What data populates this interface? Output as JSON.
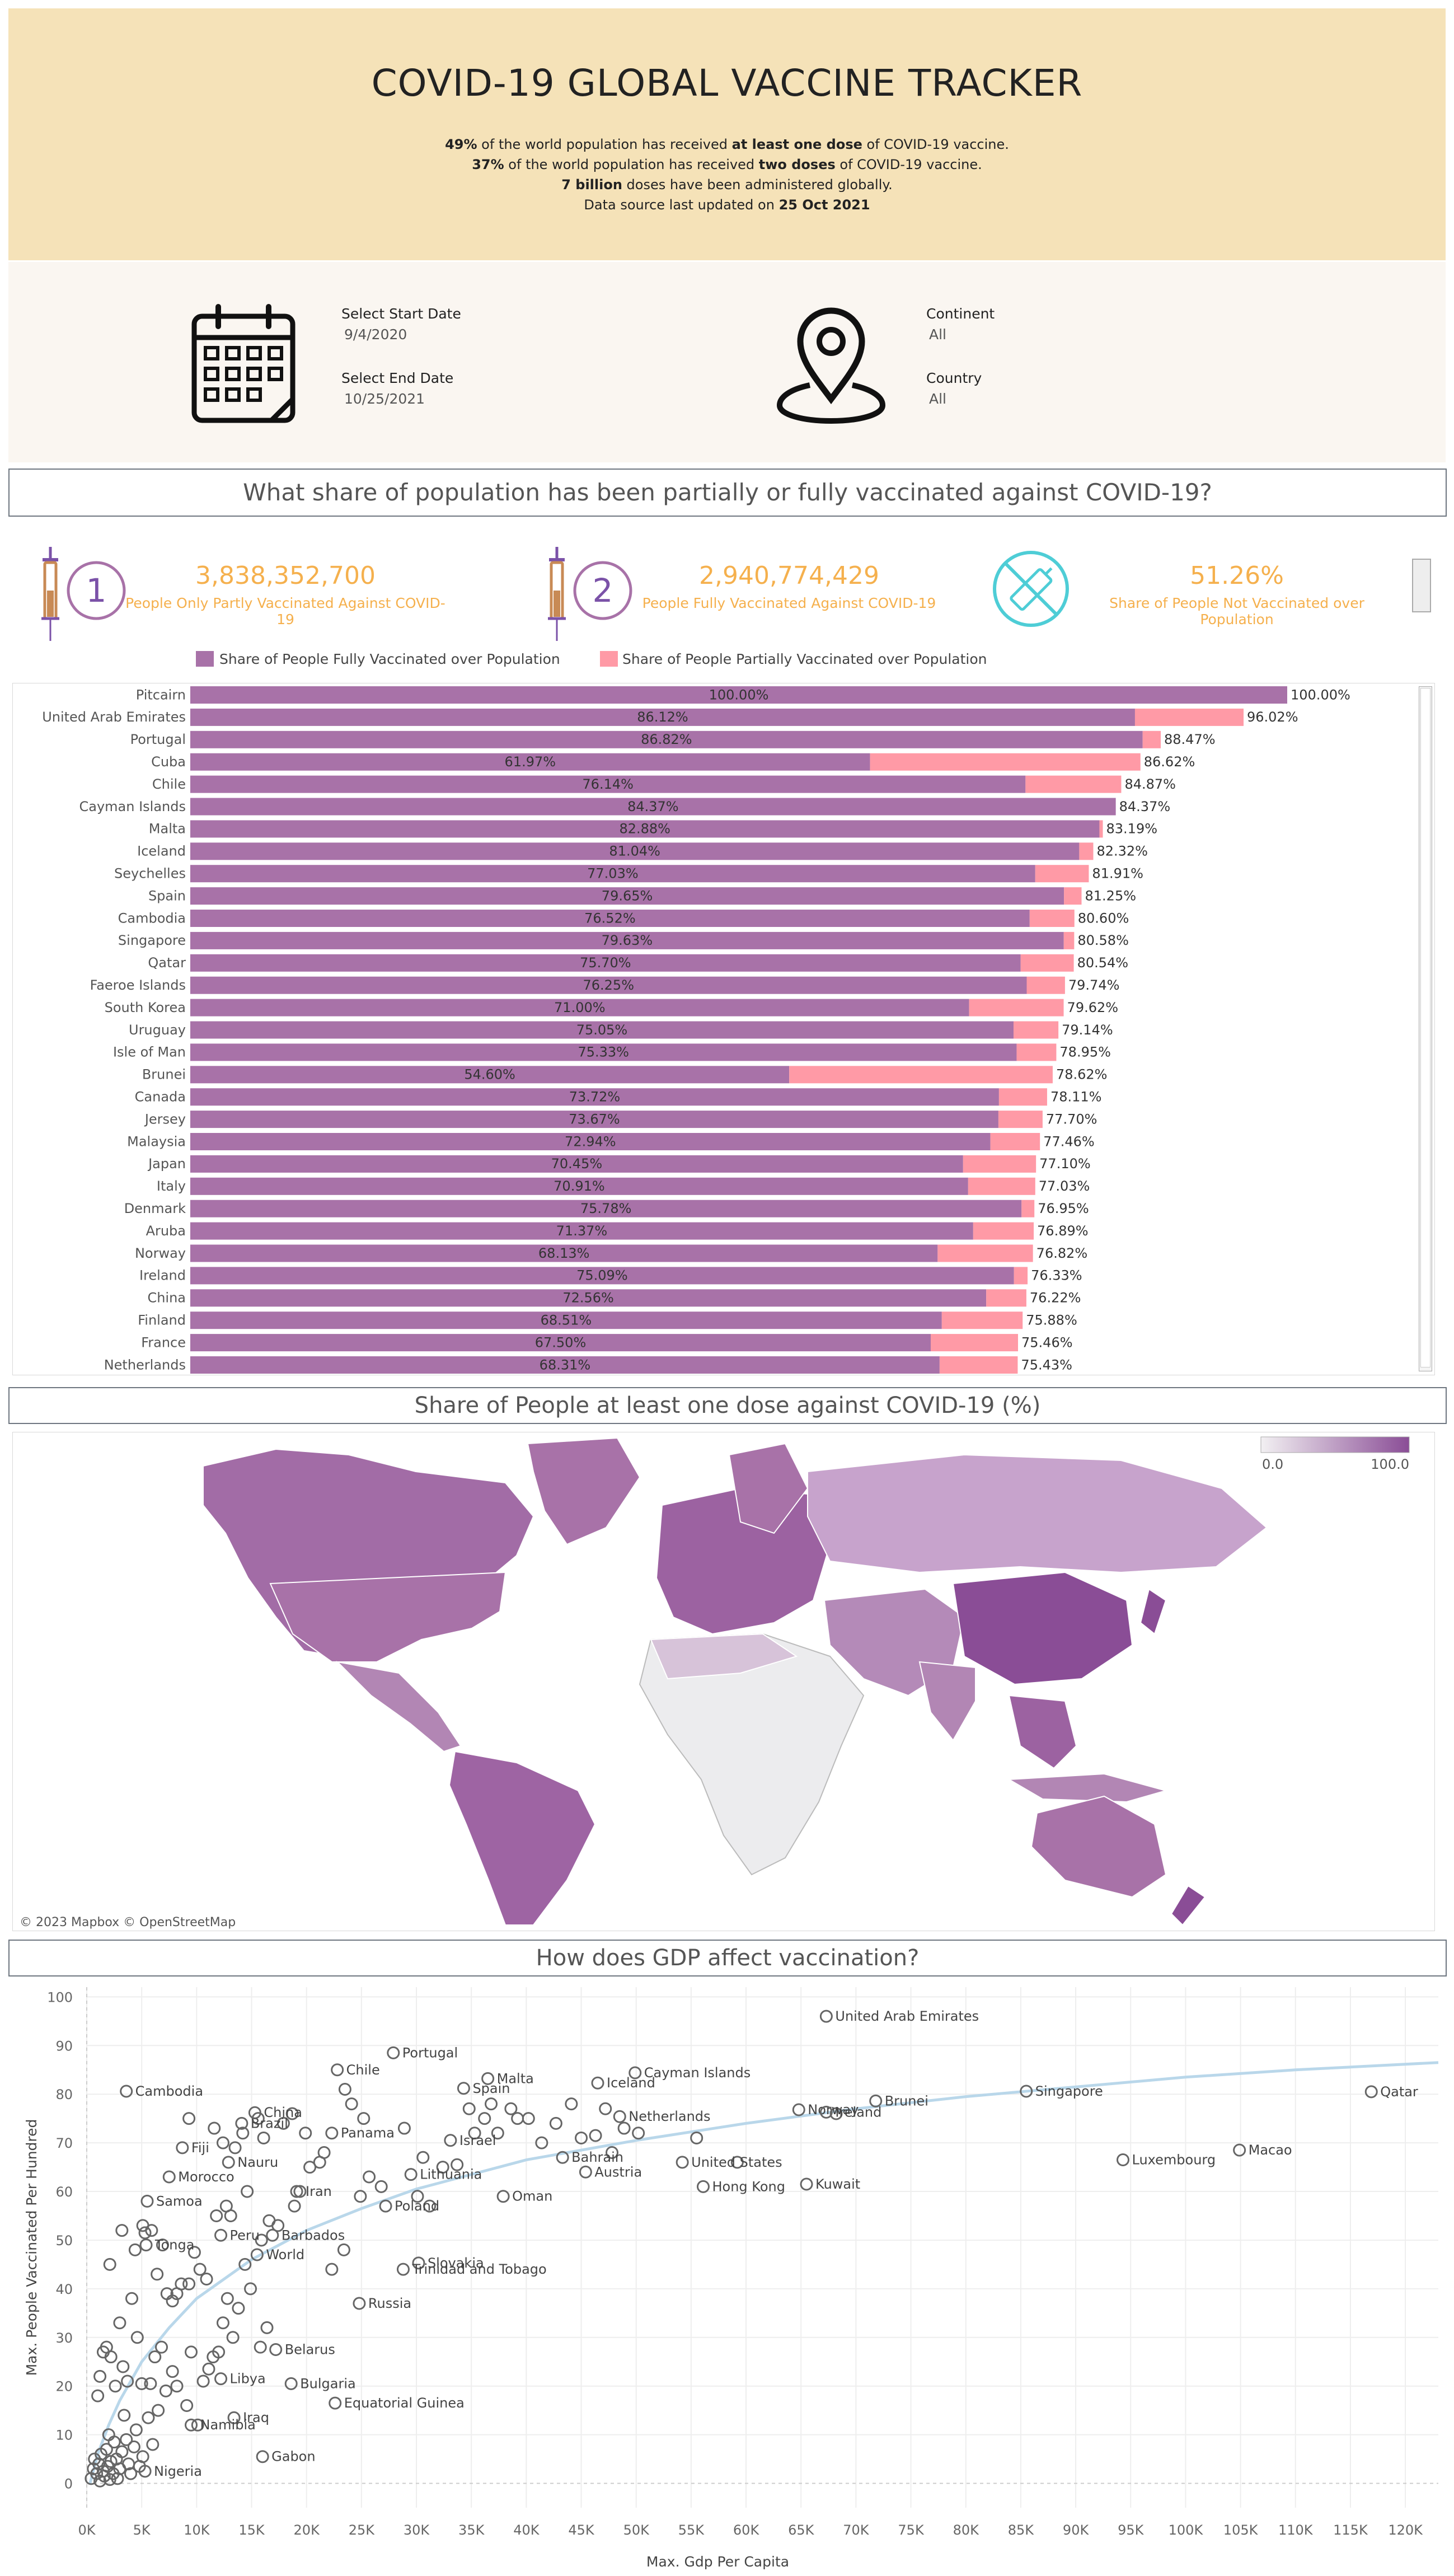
{
  "header": {
    "title": "COVID-19 GLOBAL VACCINE TRACKER",
    "line1": {
      "b1": "49%",
      "t1": " of the world population has received ",
      "b2": "at least one dose",
      "t2": " of COVID-19 vaccine."
    },
    "line2": {
      "b1": "37%",
      "t1": " of the world population has received ",
      "b2": "two doses",
      "t2": " of COVID-19 vaccine."
    },
    "line3": {
      "b1": "7 billion",
      "t1": " doses have been administered globally."
    },
    "line4": {
      "t1": "Data source last updated on ",
      "b1": "25 Oct 2021"
    }
  },
  "filters": {
    "start_label": "Select Start Date",
    "start_value": "9/4/2020",
    "end_label": "Select End Date",
    "end_value": "10/25/2021",
    "continent_label": "Continent",
    "continent_value": "All",
    "country_label": "Country",
    "country_value": "All",
    "calendar_icon": "calendar-icon",
    "location_icon": "location-pin-icon"
  },
  "section1": {
    "title": "What share of population has been partially or fully vaccinated against COVID-19?"
  },
  "kpis": [
    {
      "icon": "syringe-dose-1-icon",
      "number": "3,838,352,700",
      "label": "People Only Partly Vaccinated Against COVID-19"
    },
    {
      "icon": "syringe-dose-2-icon",
      "number": "2,940,774,429",
      "label": "People Fully Vaccinated Against COVID-19"
    },
    {
      "icon": "no-vaccine-icon",
      "number": "51.26%",
      "label": "Share of People Not Vaccinated over Population"
    }
  ],
  "section2": {
    "title": "Share of People at least one dose against COVID-19 (%)"
  },
  "section3": {
    "title": "How does GDP affect vaccination?"
  },
  "colors": {
    "fully": "#a872a8",
    "partial": "#ff9aa6",
    "kpi": "#f5b04d",
    "header": "#f5e2b8",
    "trend": "#b9d7ea"
  },
  "chart_data": [
    {
      "type": "bar",
      "orientation": "horizontal",
      "stacked": true,
      "legend": [
        "Share of People Fully Vaccinated over Population",
        "Share of People Partially Vaccinated over Population"
      ],
      "xlim": [
        0,
        100
      ],
      "categories": [
        "Pitcairn",
        "United Arab Emirates",
        "Portugal",
        "Cuba",
        "Chile",
        "Cayman Islands",
        "Malta",
        "Iceland",
        "Seychelles",
        "Spain",
        "Cambodia",
        "Singapore",
        "Qatar",
        "Faeroe Islands",
        "South Korea",
        "Uruguay",
        "Isle of Man",
        "Brunei",
        "Canada",
        "Jersey",
        "Malaysia",
        "Japan",
        "Italy",
        "Denmark",
        "Aruba",
        "Norway",
        "Ireland",
        "China",
        "Finland",
        "France",
        "Netherlands"
      ],
      "fully": [
        100.0,
        86.12,
        86.82,
        61.97,
        76.14,
        84.37,
        82.88,
        81.04,
        77.03,
        79.65,
        76.52,
        79.63,
        75.7,
        76.25,
        71.0,
        75.05,
        75.33,
        54.6,
        73.72,
        73.67,
        72.94,
        70.45,
        70.91,
        75.78,
        71.37,
        68.13,
        75.09,
        72.56,
        68.51,
        67.5,
        68.31
      ],
      "total": [
        100.0,
        96.02,
        88.47,
        86.62,
        84.87,
        84.37,
        83.19,
        82.32,
        81.91,
        81.25,
        80.6,
        80.58,
        80.54,
        79.74,
        79.62,
        79.14,
        78.95,
        78.62,
        78.11,
        77.7,
        77.46,
        77.1,
        77.03,
        76.95,
        76.89,
        76.82,
        76.33,
        76.22,
        75.88,
        75.46,
        75.43
      ],
      "fully_labels": [
        "100.00%",
        "86.12%",
        "86.82%",
        "61.97%",
        "76.14%",
        "84.37%",
        "82.88%",
        "81.04%",
        "77.03%",
        "79.65%",
        "76.52%",
        "79.63%",
        "75.70%",
        "76.25%",
        "71.00%",
        "75.05%",
        "75.33%",
        "54.60%",
        "73.72%",
        "73.67%",
        "72.94%",
        "70.45%",
        "70.91%",
        "75.78%",
        "71.37%",
        "68.13%",
        "75.09%",
        "72.56%",
        "68.51%",
        "67.50%",
        "68.31%"
      ],
      "total_labels": [
        "100.00%",
        "96.02%",
        "88.47%",
        "86.62%",
        "84.87%",
        "84.37%",
        "83.19%",
        "82.32%",
        "81.91%",
        "81.25%",
        "80.60%",
        "80.58%",
        "80.54%",
        "79.74%",
        "79.62%",
        "79.14%",
        "78.95%",
        "78.62%",
        "78.11%",
        "77.70%",
        "77.46%",
        "77.10%",
        "77.03%",
        "76.95%",
        "76.89%",
        "76.82%",
        "76.33%",
        "76.22%",
        "75.88%",
        "75.46%",
        "75.43%"
      ]
    },
    {
      "type": "choropleth",
      "color_range": [
        0.0,
        100.0
      ],
      "legend_min": "0.0",
      "legend_max": "100.0",
      "attribution": "© 2023 Mapbox © OpenStreetMap"
    },
    {
      "type": "scatter",
      "xlabel": "Max. Gdp Per Capita",
      "ylabel": "Max. People Vaccinated Per Hundred",
      "xlim": [
        0,
        123000
      ],
      "ylim": [
        -5,
        102
      ],
      "xticks": [
        0,
        5000,
        10000,
        15000,
        20000,
        25000,
        30000,
        35000,
        40000,
        45000,
        50000,
        55000,
        60000,
        65000,
        70000,
        75000,
        80000,
        85000,
        90000,
        95000,
        100000,
        105000,
        110000,
        115000,
        120000
      ],
      "xtick_labels": [
        "0K",
        "5K",
        "10K",
        "15K",
        "20K",
        "25K",
        "30K",
        "35K",
        "40K",
        "45K",
        "50K",
        "55K",
        "60K",
        "65K",
        "70K",
        "75K",
        "80K",
        "85K",
        "90K",
        "95K",
        "100K",
        "105K",
        "110K",
        "115K",
        "120K"
      ],
      "yticks": [
        0,
        10,
        20,
        30,
        40,
        50,
        60,
        70,
        80,
        90,
        100
      ],
      "ytick_labels": [
        "0",
        "10",
        "20",
        "30",
        "40",
        "50",
        "60",
        "70",
        "80",
        "90",
        "100"
      ],
      "labeled_points": [
        {
          "label": "United Arab Emirates",
          "x": 67300,
          "y": 96
        },
        {
          "label": "Portugal",
          "x": 27900,
          "y": 88.5
        },
        {
          "label": "Chile",
          "x": 22800,
          "y": 85
        },
        {
          "label": "Malta",
          "x": 36500,
          "y": 83.2
        },
        {
          "label": "Iceland",
          "x": 46500,
          "y": 82.3
        },
        {
          "label": "Cayman Islands",
          "x": 49900,
          "y": 84.4
        },
        {
          "label": "Cambodia",
          "x": 3600,
          "y": 80.6
        },
        {
          "label": "Spain",
          "x": 34300,
          "y": 81.2
        },
        {
          "label": "Netherlands",
          "x": 48500,
          "y": 75.4
        },
        {
          "label": "Singapore",
          "x": 85500,
          "y": 80.6
        },
        {
          "label": "Qatar",
          "x": 116900,
          "y": 80.5
        },
        {
          "label": "Brazil",
          "x": 14100,
          "y": 74
        },
        {
          "label": "China",
          "x": 15300,
          "y": 76.2
        },
        {
          "label": "Norway",
          "x": 64800,
          "y": 76.8
        },
        {
          "label": "Ireland",
          "x": 67300,
          "y": 76.3
        },
        {
          "label": "Brunei",
          "x": 71800,
          "y": 78.6
        },
        {
          "label": "Panama",
          "x": 22300,
          "y": 72
        },
        {
          "label": "Fiji",
          "x": 8700,
          "y": 69
        },
        {
          "label": "Israel",
          "x": 33100,
          "y": 70.5
        },
        {
          "label": "Nauru",
          "x": 12900,
          "y": 66
        },
        {
          "label": "United States",
          "x": 54200,
          "y": 66
        },
        {
          "label": "Bahrain",
          "x": 43300,
          "y": 67
        },
        {
          "label": "Luxembourg",
          "x": 94300,
          "y": 66.5
        },
        {
          "label": "Macao",
          "x": 104900,
          "y": 68.5
        },
        {
          "label": "Morocco",
          "x": 7500,
          "y": 63
        },
        {
          "label": "Lithuania",
          "x": 29500,
          "y": 63.5
        },
        {
          "label": "Austria",
          "x": 45400,
          "y": 64
        },
        {
          "label": "Iran",
          "x": 19100,
          "y": 60
        },
        {
          "label": "Hong Kong",
          "x": 56100,
          "y": 61
        },
        {
          "label": "Kuwait",
          "x": 65500,
          "y": 61.5
        },
        {
          "label": "Samoa",
          "x": 5500,
          "y": 58
        },
        {
          "label": "Oman",
          "x": 37900,
          "y": 59
        },
        {
          "label": "Poland",
          "x": 27200,
          "y": 57
        },
        {
          "label": "Peru",
          "x": 12200,
          "y": 51
        },
        {
          "label": "Barbados",
          "x": 16900,
          "y": 51
        },
        {
          "label": "Tonga",
          "x": 5400,
          "y": 49
        },
        {
          "label": "World",
          "x": 15500,
          "y": 47
        },
        {
          "label": "Slovakia",
          "x": 30200,
          "y": 45.3
        },
        {
          "label": "Trinidad and Tobago",
          "x": 28800,
          "y": 44
        },
        {
          "label": "Russia",
          "x": 24800,
          "y": 37
        },
        {
          "label": "Belarus",
          "x": 17200,
          "y": 27.5
        },
        {
          "label": "Libya",
          "x": 12200,
          "y": 21.5
        },
        {
          "label": "Bulgaria",
          "x": 18600,
          "y": 20.5
        },
        {
          "label": "Equatorial Guinea",
          "x": 22600,
          "y": 16.5
        },
        {
          "label": "Iraq",
          "x": 13400,
          "y": 13.5
        },
        {
          "label": "Namibia",
          "x": 9500,
          "y": 12
        },
        {
          "label": "Gabon",
          "x": 16000,
          "y": 5.5
        },
        {
          "label": "Nigeria",
          "x": 5300,
          "y": 2.5
        }
      ],
      "other_points": [
        [
          400,
          1
        ],
        [
          600,
          3
        ],
        [
          700,
          5
        ],
        [
          900,
          2
        ],
        [
          1100,
          4
        ],
        [
          1200,
          0.5
        ],
        [
          1300,
          6
        ],
        [
          1500,
          2.5
        ],
        [
          1600,
          1.5
        ],
        [
          1800,
          7
        ],
        [
          1900,
          3.5
        ],
        [
          2000,
          10
        ],
        [
          2100,
          0.8
        ],
        [
          2200,
          4.5
        ],
        [
          2400,
          2
        ],
        [
          2500,
          8.5
        ],
        [
          2700,
          5
        ],
        [
          2800,
          1
        ],
        [
          3000,
          3
        ],
        [
          3200,
          6.5
        ],
        [
          3400,
          14
        ],
        [
          3600,
          9
        ],
        [
          3800,
          4
        ],
        [
          4000,
          2
        ],
        [
          4300,
          7.5
        ],
        [
          4500,
          11
        ],
        [
          4800,
          3.5
        ],
        [
          5100,
          5.5
        ],
        [
          5600,
          13.5
        ],
        [
          6000,
          8
        ],
        [
          6500,
          15
        ],
        [
          1000,
          18
        ],
        [
          1200,
          22
        ],
        [
          1500,
          27
        ],
        [
          1800,
          28
        ],
        [
          2200,
          26
        ],
        [
          2600,
          20
        ],
        [
          3000,
          33
        ],
        [
          3300,
          24
        ],
        [
          3700,
          21
        ],
        [
          4100,
          38
        ],
        [
          4600,
          30
        ],
        [
          5000,
          20.5
        ],
        [
          5800,
          20.5
        ],
        [
          6200,
          26
        ],
        [
          6800,
          28
        ],
        [
          7200,
          19
        ],
        [
          7800,
          23
        ],
        [
          8200,
          20
        ],
        [
          8600,
          41
        ],
        [
          9100,
          16
        ],
        [
          9500,
          27
        ],
        [
          10100,
          12
        ],
        [
          10600,
          21
        ],
        [
          11100,
          23.5
        ],
        [
          11500,
          26
        ],
        [
          12000,
          27
        ],
        [
          12400,
          33
        ],
        [
          12800,
          38
        ],
        [
          13300,
          30
        ],
        [
          13800,
          36
        ],
        [
          14400,
          45
        ],
        [
          14900,
          40
        ],
        [
          15800,
          28
        ],
        [
          16400,
          32
        ],
        [
          2100,
          45
        ],
        [
          3200,
          52
        ],
        [
          4400,
          48
        ],
        [
          5100,
          53
        ],
        [
          5300,
          51.5
        ],
        [
          5900,
          52
        ],
        [
          6400,
          43
        ],
        [
          6900,
          49
        ],
        [
          7300,
          39
        ],
        [
          7800,
          37.5
        ],
        [
          8200,
          39
        ],
        [
          9300,
          41
        ],
        [
          9800,
          47.5
        ],
        [
          10300,
          44
        ],
        [
          10900,
          42
        ],
        [
          11800,
          55
        ],
        [
          12700,
          57
        ],
        [
          13100,
          55
        ],
        [
          14600,
          60
        ],
        [
          15900,
          50
        ],
        [
          16600,
          54
        ],
        [
          17400,
          53
        ],
        [
          18900,
          57
        ],
        [
          20300,
          65
        ],
        [
          21200,
          66
        ],
        [
          22300,
          44
        ],
        [
          23400,
          48
        ],
        [
          24900,
          59
        ],
        [
          25700,
          63
        ],
        [
          26800,
          61
        ],
        [
          30100,
          59
        ],
        [
          31200,
          57
        ],
        [
          30600,
          67
        ],
        [
          32400,
          65
        ],
        [
          33700,
          65.5
        ],
        [
          34800,
          77
        ],
        [
          35300,
          72
        ],
        [
          36200,
          75
        ],
        [
          36800,
          78
        ],
        [
          37400,
          72
        ],
        [
          38600,
          77
        ],
        [
          39200,
          75
        ],
        [
          40200,
          75
        ],
        [
          41400,
          70
        ],
        [
          42700,
          74
        ],
        [
          44100,
          78
        ],
        [
          45000,
          71
        ],
        [
          46300,
          71.5
        ],
        [
          47200,
          77
        ],
        [
          47800,
          68
        ],
        [
          48900,
          73
        ],
        [
          50200,
          72
        ],
        [
          55500,
          71
        ],
        [
          59200,
          66
        ],
        [
          68200,
          76
        ],
        [
          9300,
          75
        ],
        [
          11600,
          73
        ],
        [
          12400,
          70
        ],
        [
          13500,
          69
        ],
        [
          14200,
          72
        ],
        [
          15600,
          75
        ],
        [
          16100,
          71
        ],
        [
          18700,
          76
        ],
        [
          19900,
          72
        ],
        [
          21600,
          68
        ],
        [
          23500,
          81
        ],
        [
          24100,
          78
        ],
        [
          25200,
          75
        ],
        [
          28900,
          73
        ],
        [
          17900,
          74
        ],
        [
          19400,
          60
        ]
      ],
      "trend": [
        [
          300,
          0
        ],
        [
          1000,
          6
        ],
        [
          2000,
          12
        ],
        [
          3000,
          17
        ],
        [
          5000,
          25
        ],
        [
          7500,
          32
        ],
        [
          10000,
          38
        ],
        [
          15000,
          46
        ],
        [
          20000,
          52
        ],
        [
          25000,
          56.5
        ],
        [
          30000,
          60.5
        ],
        [
          40000,
          66.5
        ],
        [
          50000,
          70.5
        ],
        [
          60000,
          74
        ],
        [
          70000,
          77
        ],
        [
          80000,
          79.5
        ],
        [
          90000,
          81.5
        ],
        [
          100000,
          83.5
        ],
        [
          110000,
          85
        ],
        [
          123000,
          86.5
        ]
      ]
    }
  ]
}
